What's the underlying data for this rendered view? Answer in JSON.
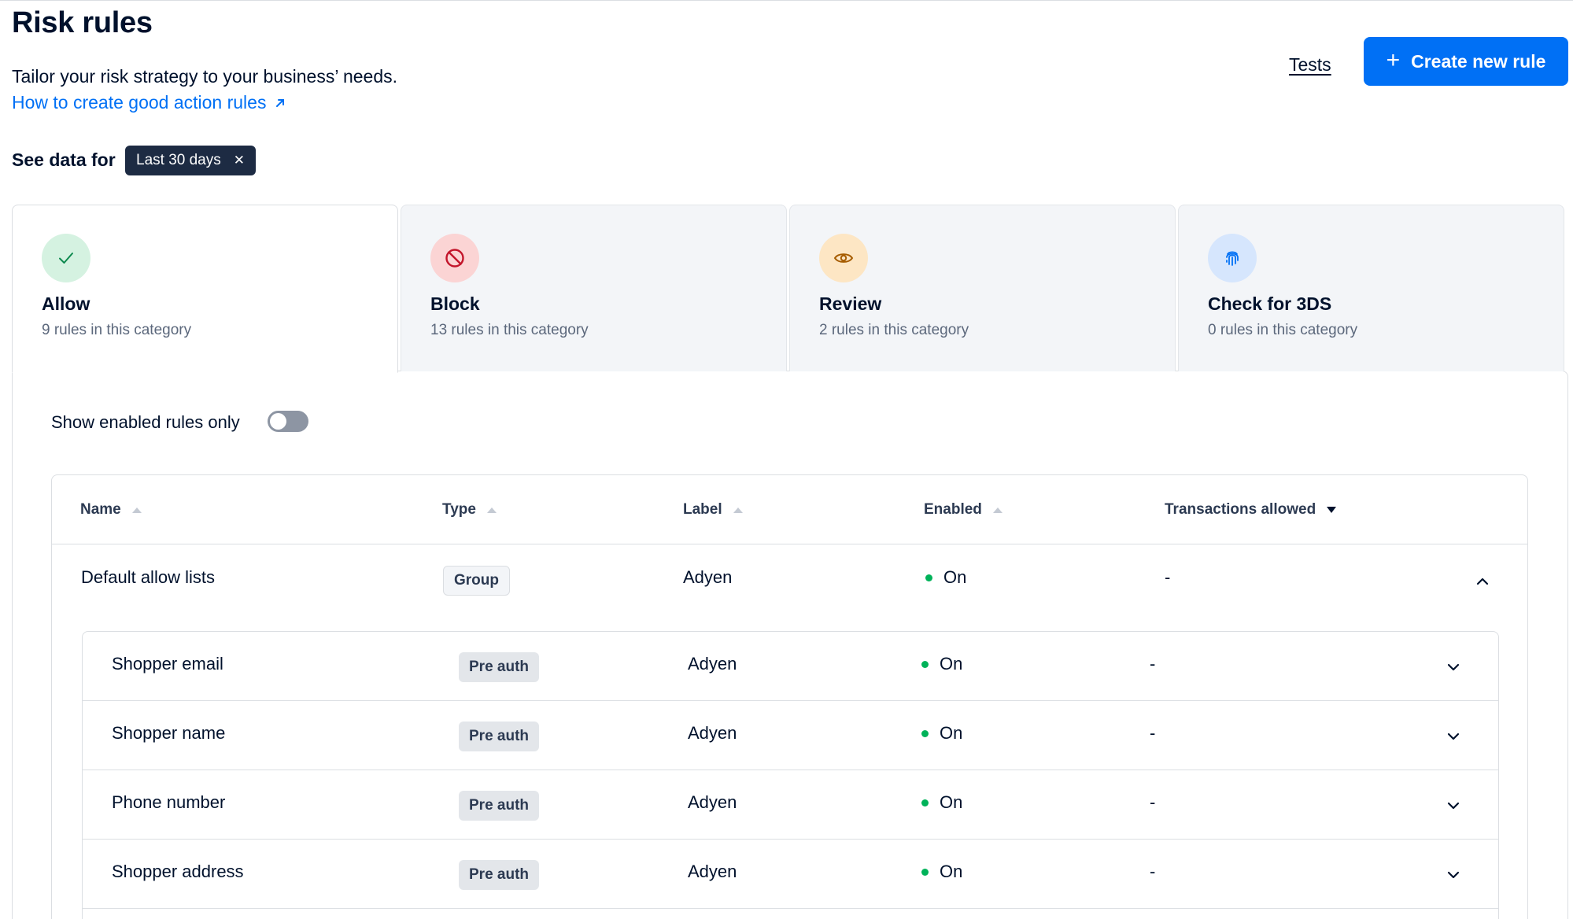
{
  "page": {
    "title": "Risk rules",
    "subtitle": "Tailor your risk strategy to your business’ needs.",
    "help_link": "How to create good action rules",
    "tests_link": "Tests",
    "create_button": "Create new rule"
  },
  "filter": {
    "label": "See data for",
    "chip": "Last 30 days"
  },
  "tabs": [
    {
      "title": "Allow",
      "subtitle": "9 rules in this category",
      "icon": "check-icon",
      "active": true
    },
    {
      "title": "Block",
      "subtitle": "13 rules in this category",
      "icon": "block-icon",
      "active": false
    },
    {
      "title": "Review",
      "subtitle": "2 rules in this category",
      "icon": "eye-icon",
      "active": false
    },
    {
      "title": "Check for 3DS",
      "subtitle": "0 rules in this category",
      "icon": "fingerprint-icon",
      "active": false
    }
  ],
  "toggle": {
    "label": "Show enabled rules only",
    "on": false
  },
  "table": {
    "columns": [
      "Name",
      "Type",
      "Label",
      "Enabled",
      "Transactions allowed"
    ],
    "group": {
      "name": "Default allow lists",
      "type": "Group",
      "label": "Adyen",
      "enabled": "On",
      "transactions": "-"
    },
    "rows": [
      {
        "name": "Shopper email",
        "type": "Pre auth",
        "label": "Adyen",
        "enabled": "On",
        "transactions": "-"
      },
      {
        "name": "Shopper name",
        "type": "Pre auth",
        "label": "Adyen",
        "enabled": "On",
        "transactions": "-"
      },
      {
        "name": "Phone number",
        "type": "Pre auth",
        "label": "Adyen",
        "enabled": "On",
        "transactions": "-"
      },
      {
        "name": "Shopper address",
        "type": "Pre auth",
        "label": "Adyen",
        "enabled": "On",
        "transactions": "-"
      }
    ]
  },
  "colors": {
    "primary": "#0070f5",
    "text": "#00112c",
    "status_on": "#00b259",
    "allow_bg": "#d5f2e1",
    "block_bg": "#fbd4d4",
    "review_bg": "#fde6c4",
    "threeds_bg": "#d6e6fd"
  }
}
